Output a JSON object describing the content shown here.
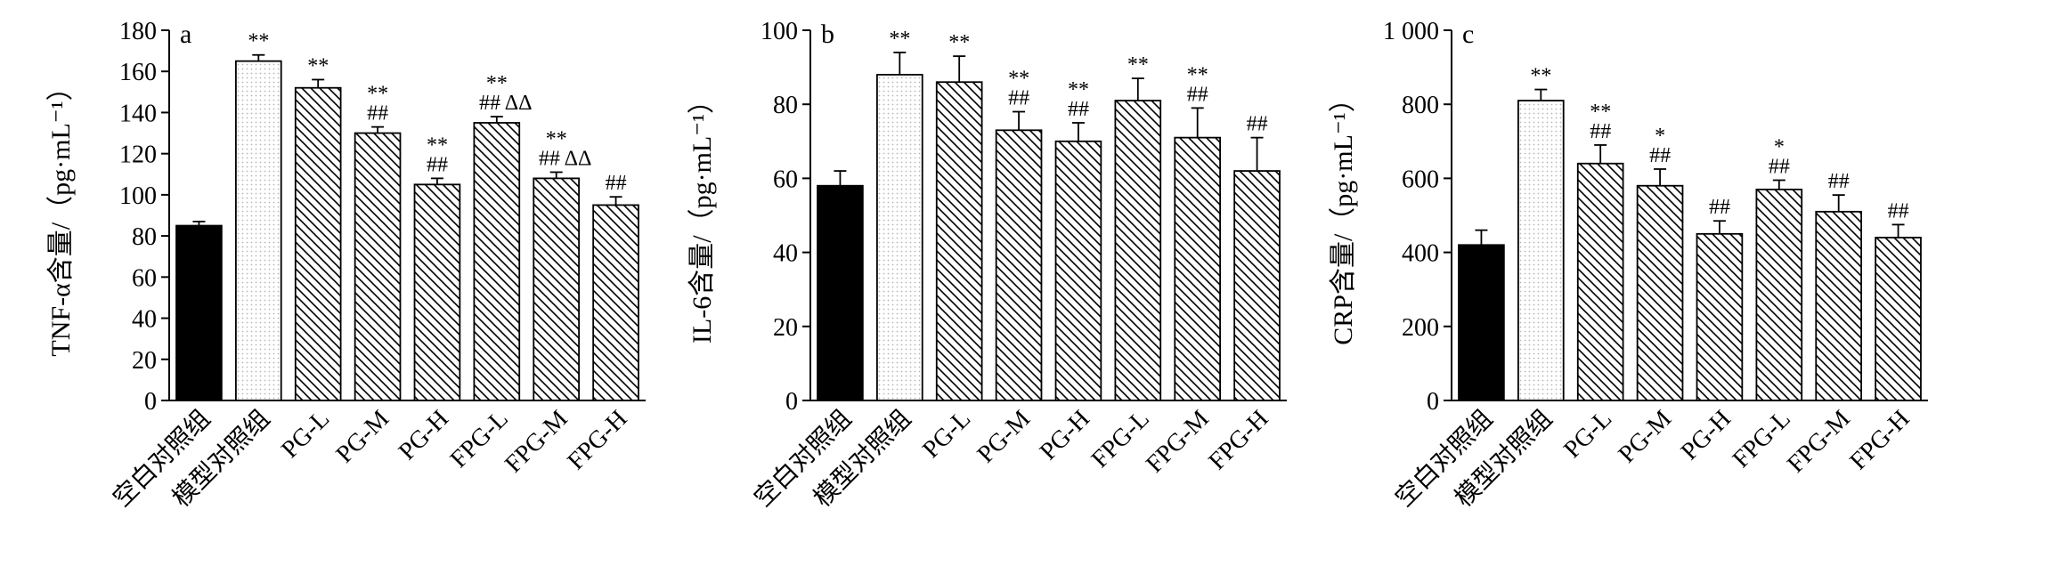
{
  "chart_data": [
    {
      "type": "bar",
      "panel_label": "a",
      "ylabel": "TNF-α含量/（pg·mL⁻¹）",
      "ylim": [
        0,
        180
      ],
      "yticks": [
        0,
        20,
        40,
        60,
        80,
        100,
        120,
        140,
        160,
        180
      ],
      "ytick_labels": [
        "0",
        "20",
        "40",
        "60",
        "80",
        "100",
        "120",
        "140",
        "160",
        "180"
      ],
      "categories": [
        "空白对照组",
        "模型对照组",
        "PG-L",
        "PG-M",
        "PG-H",
        "FPG-L",
        "FPG-M",
        "FPG-H"
      ],
      "values": [
        85,
        165,
        152,
        130,
        105,
        135,
        108,
        95
      ],
      "errors": [
        2,
        3,
        4,
        3,
        3,
        3,
        3,
        4
      ],
      "annotations": [
        [],
        [
          "**"
        ],
        [
          "**"
        ],
        [
          "**",
          "##"
        ],
        [
          "**",
          "##"
        ],
        [
          "**",
          "## ΔΔ"
        ],
        [
          "**",
          "## ΔΔ"
        ],
        [
          "##"
        ]
      ],
      "bar_styles": [
        "solid",
        "dotted",
        "hatch",
        "hatch",
        "hatch",
        "hatch",
        "hatch",
        "hatch"
      ]
    },
    {
      "type": "bar",
      "panel_label": "b",
      "ylabel": "IL-6含量/（pg·mL⁻¹）",
      "ylim": [
        0,
        100
      ],
      "yticks": [
        0,
        20,
        40,
        60,
        80,
        100
      ],
      "ytick_labels": [
        "0",
        "20",
        "40",
        "60",
        "80",
        "100"
      ],
      "categories": [
        "空白对照组",
        "模型对照组",
        "PG-L",
        "PG-M",
        "PG-H",
        "FPG-L",
        "FPG-M",
        "FPG-H"
      ],
      "values": [
        58,
        88,
        86,
        73,
        70,
        81,
        71,
        62
      ],
      "errors": [
        4,
        6,
        7,
        5,
        5,
        6,
        8,
        9
      ],
      "annotations": [
        [],
        [
          "**"
        ],
        [
          "**"
        ],
        [
          "**",
          "##"
        ],
        [
          "**",
          "##"
        ],
        [
          "**"
        ],
        [
          "**",
          "##"
        ],
        [
          "##"
        ]
      ],
      "bar_styles": [
        "solid",
        "dotted",
        "hatch",
        "hatch",
        "hatch",
        "hatch",
        "hatch",
        "hatch"
      ]
    },
    {
      "type": "bar",
      "panel_label": "c",
      "ylabel": "CRP含量/（pg·mL⁻¹）",
      "ylim": [
        0,
        1000
      ],
      "yticks": [
        0,
        200,
        400,
        600,
        800,
        1000
      ],
      "ytick_labels": [
        "0",
        "200",
        "400",
        "600",
        "800",
        "1 000"
      ],
      "categories": [
        "空白对照组",
        "模型对照组",
        "PG-L",
        "PG-M",
        "PG-H",
        "FPG-L",
        "FPG-M",
        "FPG-H"
      ],
      "values": [
        420,
        810,
        640,
        580,
        450,
        570,
        510,
        440
      ],
      "errors": [
        40,
        30,
        50,
        45,
        35,
        25,
        45,
        35
      ],
      "annotations": [
        [],
        [
          "**"
        ],
        [
          "**",
          "##"
        ],
        [
          "*",
          "##"
        ],
        [
          "##"
        ],
        [
          "*",
          "##"
        ],
        [
          "##"
        ],
        [
          "##"
        ]
      ],
      "bar_styles": [
        "solid",
        "dotted",
        "hatch",
        "hatch",
        "hatch",
        "hatch",
        "hatch",
        "hatch"
      ]
    }
  ]
}
